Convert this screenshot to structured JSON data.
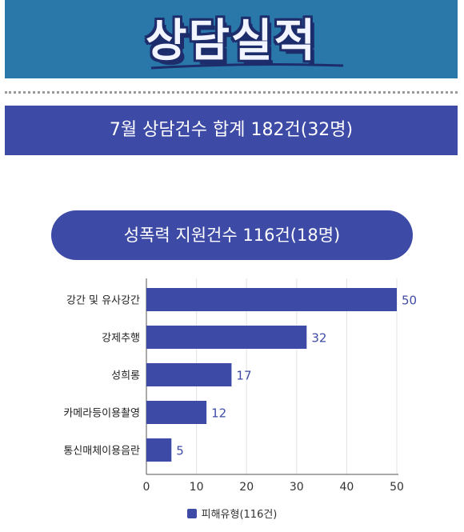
{
  "header": {
    "title": "상담실적"
  },
  "summary": {
    "text": "7월 상담건수 합계 182건(32명)"
  },
  "section": {
    "title": "성폭력 지원건수 116건(18명)"
  },
  "colors": {
    "bar": "#3e4ba6",
    "banner": "#2a77aa",
    "label": "#3e4ba6"
  },
  "chart_data": {
    "type": "bar",
    "orientation": "horizontal",
    "categories": [
      "강간 및 유사강간",
      "강제추행",
      "성희롱",
      "카메라등이용촬영",
      "통신매체이용음란"
    ],
    "series": [
      {
        "name": "피해유형(116건)",
        "values": [
          50,
          32,
          17,
          12,
          5
        ]
      }
    ],
    "xlim": [
      0,
      50
    ],
    "xticks": [
      0,
      10,
      20,
      30,
      40,
      50
    ],
    "grid": true,
    "legend": "bottom",
    "data_labels": true
  }
}
